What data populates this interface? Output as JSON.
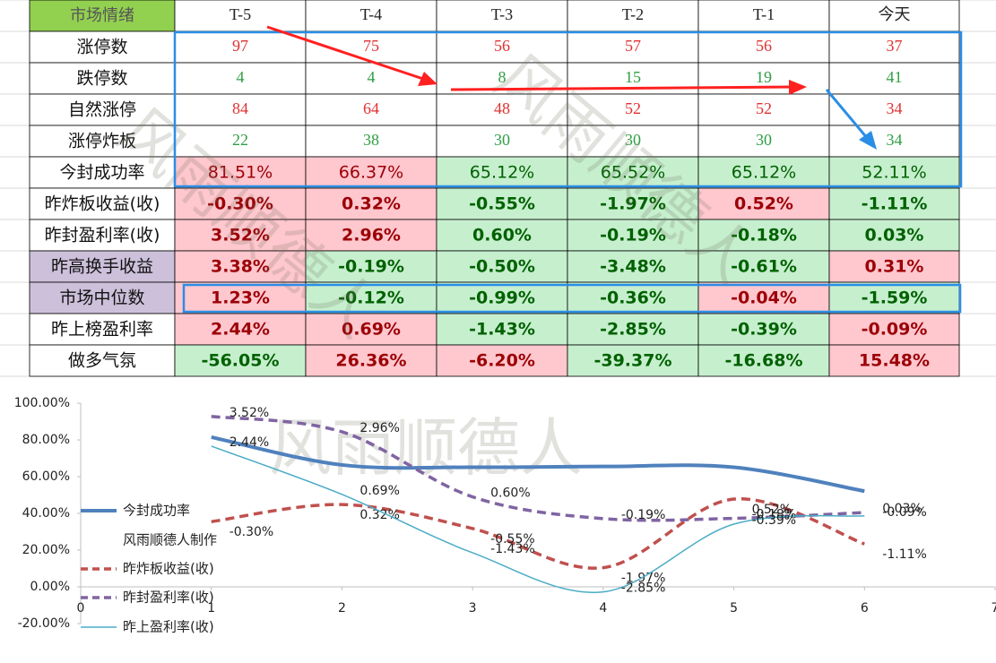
{
  "table": {
    "header": [
      "市场情绪",
      "T-5",
      "T-4",
      "T-3",
      "T-2",
      "T-1",
      "今天"
    ],
    "rows": [
      {
        "label": "涨停数",
        "cells": [
          "97",
          "75",
          "56",
          "57",
          "56",
          "37"
        ],
        "text_color": "#e03131"
      },
      {
        "label": "跌停数",
        "cells": [
          "4",
          "4",
          "8",
          "15",
          "19",
          "41"
        ],
        "text_color": "#2f9e44"
      },
      {
        "label": "自然涨停",
        "cells": [
          "84",
          "64",
          "48",
          "52",
          "52",
          "34"
        ],
        "text_color": "#e03131"
      },
      {
        "label": "涨停炸板",
        "cells": [
          "22",
          "38",
          "30",
          "30",
          "30",
          "34"
        ],
        "text_color": "#2f9e44"
      },
      {
        "label": "今封成功率",
        "cells": [
          "81.51%",
          "66.37%",
          "65.12%",
          "65.52%",
          "65.12%",
          "52.11%"
        ],
        "fills": [
          "#ffc7ce",
          "#ffc7ce",
          "#c6efce",
          "#c6efce",
          "#c6efce",
          "#c6efce"
        ]
      },
      {
        "label": "昨炸板收益(收)",
        "cells": [
          "-0.30%",
          "0.32%",
          "-0.55%",
          "-1.97%",
          "0.52%",
          "-1.11%"
        ],
        "fills": [
          "#ffc7ce",
          "#ffc7ce",
          "#c6efce",
          "#c6efce",
          "#ffc7ce",
          "#c6efce"
        ]
      },
      {
        "label": "昨封盈利率(收)",
        "cells": [
          "3.52%",
          "2.96%",
          "0.60%",
          "-0.19%",
          "-0.18%",
          "0.03%"
        ],
        "fills": [
          "#ffc7ce",
          "#ffc7ce",
          "#c6efce",
          "#c6efce",
          "#c6efce",
          "#c6efce"
        ]
      },
      {
        "label": "昨高换手收益",
        "cells": [
          "3.38%",
          "-0.19%",
          "-0.50%",
          "-3.48%",
          "-0.61%",
          "0.31%"
        ],
        "fills": [
          "#ffc7ce",
          "#c6efce",
          "#c6efce",
          "#c6efce",
          "#c6efce",
          "#ffc7ce"
        ],
        "label_fill": "#ccc0da"
      },
      {
        "label": "市场中位数",
        "cells": [
          "1.23%",
          "-0.12%",
          "-0.99%",
          "-0.36%",
          "-0.04%",
          "-1.59%"
        ],
        "fills": [
          "#ffc7ce",
          "#c6efce",
          "#c6efce",
          "#c6efce",
          "#ffc7ce",
          "#c6efce"
        ],
        "label_fill": "#ccc0da"
      },
      {
        "label": "昨上榜盈利率",
        "cells": [
          "2.44%",
          "0.69%",
          "-1.43%",
          "-2.85%",
          "-0.39%",
          "-0.09%"
        ],
        "fills": [
          "#ffc7ce",
          "#ffc7ce",
          "#c6efce",
          "#c6efce",
          "#c6efce",
          "#ffc7ce"
        ]
      },
      {
        "label": "做多气氛",
        "cells": [
          "-56.05%",
          "26.36%",
          "-6.20%",
          "-39.37%",
          "-16.68%",
          "15.48%"
        ],
        "fills": [
          "#c6efce",
          "#ffc7ce",
          "#ffc7ce",
          "#c6efce",
          "#c6efce",
          "#ffc7ce"
        ]
      }
    ]
  },
  "watermark": "风雨顺德人",
  "chart_data": {
    "type": "line",
    "legend_note": "风雨顺德人制作",
    "x": [
      1,
      2,
      3,
      4,
      5,
      6
    ],
    "xlim": [
      0,
      7
    ],
    "xticks": [
      0,
      1,
      2,
      3,
      4,
      5,
      6,
      7
    ],
    "ylim": [
      -20,
      100
    ],
    "yticks": [
      {
        "value": -20,
        "label": "-20.00%"
      },
      {
        "value": 0,
        "label": "0.00%"
      },
      {
        "value": 20,
        "label": "20.00%"
      },
      {
        "value": 40,
        "label": "40.00%"
      },
      {
        "value": 60,
        "label": "60.00%"
      },
      {
        "value": 80,
        "label": "80.00%"
      },
      {
        "value": 100,
        "label": "100.00%"
      }
    ],
    "y2lim": [
      -4,
      4
    ],
    "series": [
      {
        "name": "今封成功率",
        "color": "#4f81bd",
        "values": [
          81.51,
          66.37,
          65.12,
          65.52,
          65.12,
          52.11
        ]
      },
      {
        "name": "昨炸板收益(收)",
        "color": "#c0504d",
        "axis": "y2",
        "dash": true,
        "values": [
          -0.3,
          0.32,
          -0.55,
          -1.97,
          0.52,
          -1.11
        ],
        "value_labels": [
          "-0.30%",
          "0.32%",
          "-0.55%",
          "-1.97%",
          "0.52%",
          "-1.11%"
        ]
      },
      {
        "name": "昨封盈利率(收)",
        "color": "#8064a2",
        "axis": "y2",
        "dash": true,
        "values": [
          3.52,
          2.96,
          0.6,
          -0.19,
          -0.18,
          0.03
        ],
        "value_labels": [
          "3.52%",
          "2.96%",
          "0.60%",
          "-0.19%",
          "-0.18%",
          "0.03%"
        ]
      },
      {
        "name": "昨上盈利率(收)",
        "color": "#4bacc6",
        "axis": "y2",
        "values": [
          2.44,
          0.69,
          -1.43,
          -2.85,
          -0.39,
          -0.09
        ],
        "value_labels": [
          "2.44%",
          "0.69%",
          "-1.43%",
          "-2.85%",
          "-0.39%",
          "-0.09%"
        ]
      }
    ]
  }
}
